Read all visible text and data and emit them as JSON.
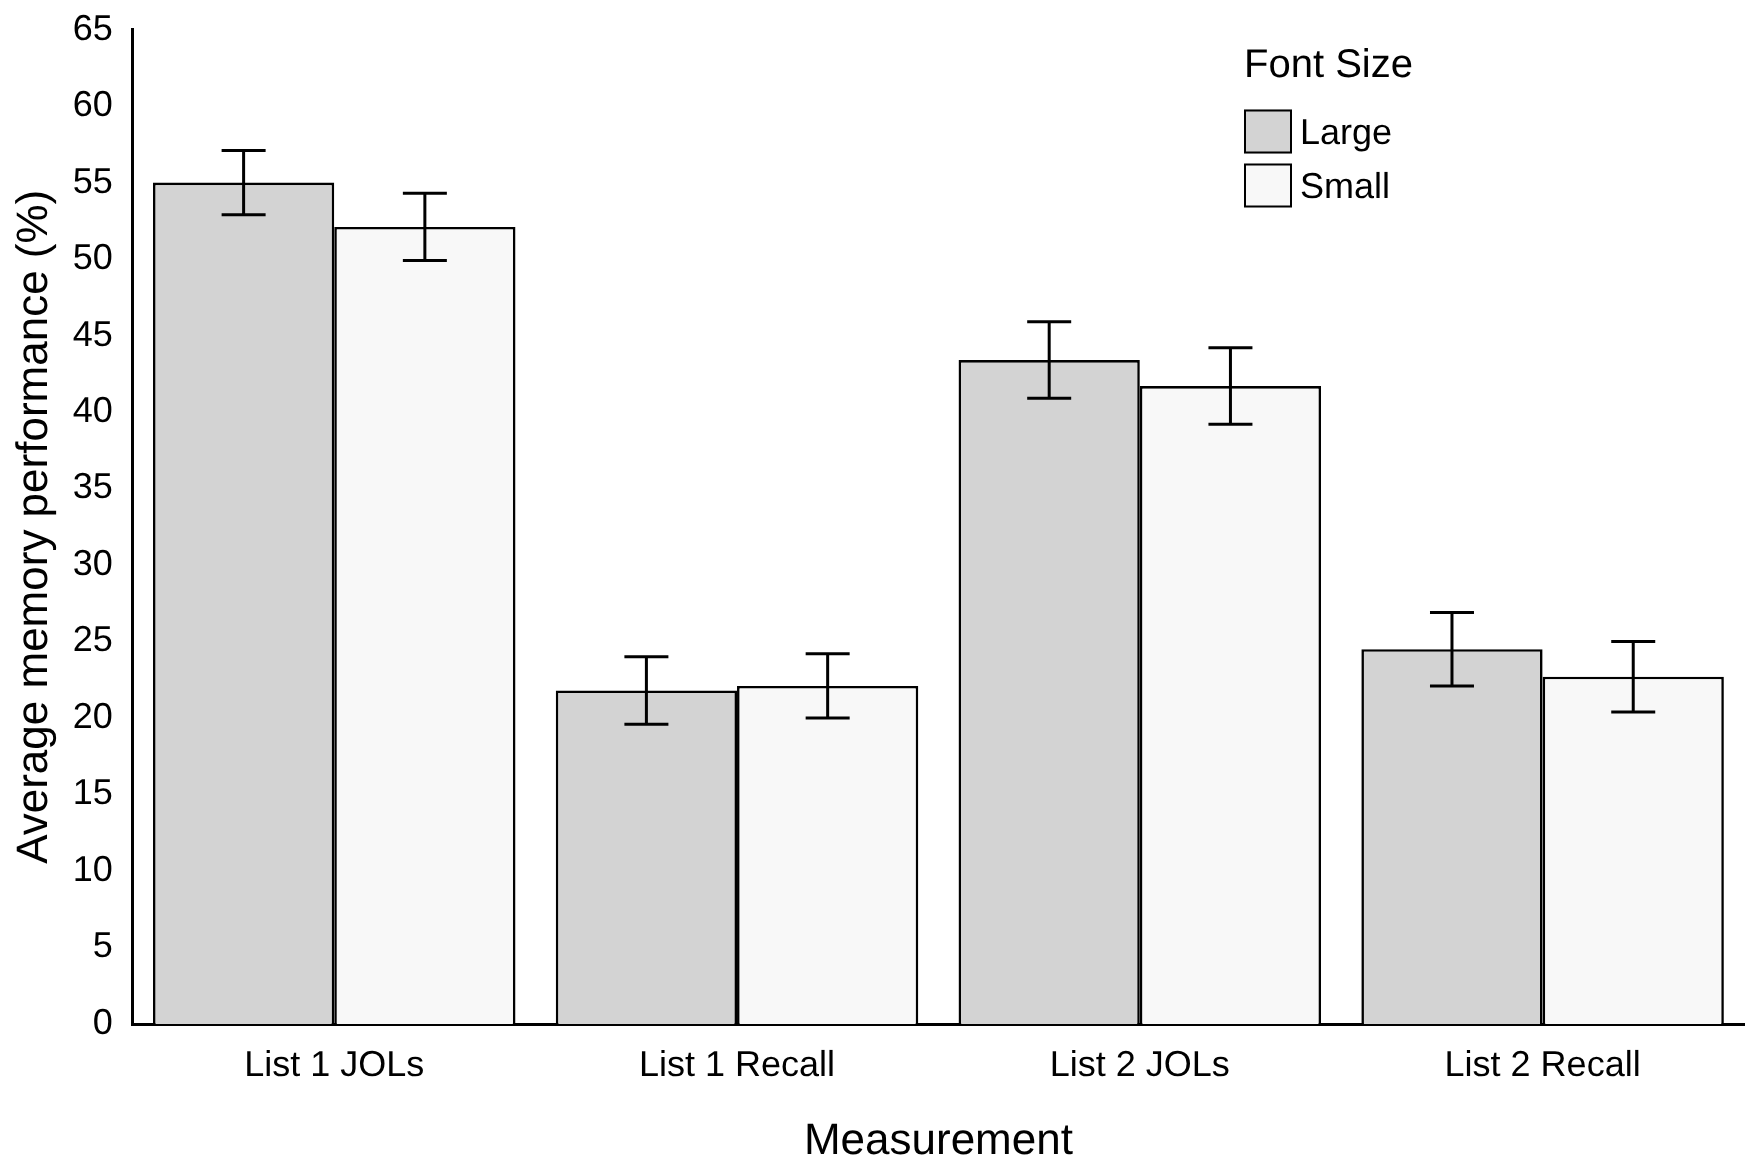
{
  "chart_data": {
    "type": "bar",
    "xlabel": "Measurement",
    "ylabel": "Average memory performance (%)",
    "legend_title": "Font Size",
    "categories": [
      "List 1 JOLs",
      "List 1 Recall",
      "List 2 JOLs",
      "List 2 Recall"
    ],
    "series": [
      {
        "name": "Large",
        "color": "#d3d3d3",
        "values": [
          55.0,
          21.8,
          43.4,
          24.5
        ],
        "errors": [
          2.1,
          2.2,
          2.5,
          2.4
        ]
      },
      {
        "name": "Small",
        "color": "#f8f8f8",
        "values": [
          52.1,
          22.1,
          41.7,
          22.7
        ],
        "errors": [
          2.2,
          2.1,
          2.5,
          2.3
        ]
      }
    ],
    "ylim": [
      0,
      65
    ],
    "yticks": [
      0,
      5,
      10,
      15,
      20,
      25,
      30,
      35,
      40,
      45,
      50,
      55,
      60,
      65
    ],
    "grid": false,
    "legend": "top right"
  }
}
